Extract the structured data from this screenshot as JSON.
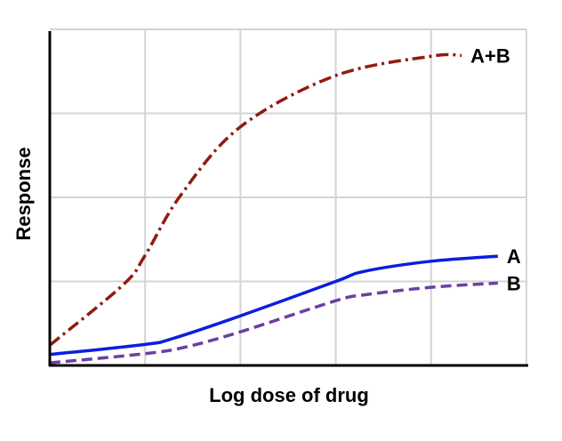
{
  "chart_data": {
    "type": "line",
    "title": "",
    "xlabel": "Log dose of drug",
    "ylabel": "Response",
    "xlim": [
      0,
      5
    ],
    "ylim": [
      0,
      4
    ],
    "grid": true,
    "tick_labels": false,
    "series": [
      {
        "name": "A+B",
        "color": "#8e1c12",
        "style": "dash-dot",
        "x": [
          0,
          0.77,
          1.0,
          1.37,
          2.0,
          3.0,
          4.0,
          4.32
        ],
        "y": [
          0.24,
          0.96,
          1.31,
          2.02,
          2.84,
          3.45,
          3.68,
          3.69
        ]
      },
      {
        "name": "A",
        "color": "#0b1ee0",
        "style": "solid",
        "x": [
          0,
          1.0,
          1.29,
          2.0,
          3.0,
          3.3,
          4.0,
          4.7
        ],
        "y": [
          0.13,
          0.25,
          0.32,
          0.59,
          1.0,
          1.12,
          1.24,
          1.3
        ]
      },
      {
        "name": "B",
        "color": "#6a3fa2",
        "style": "dashed",
        "x": [
          0,
          1.0,
          1.43,
          2.0,
          3.0,
          3.3,
          4.0,
          4.7
        ],
        "y": [
          0.03,
          0.14,
          0.22,
          0.4,
          0.77,
          0.84,
          0.93,
          0.98
        ]
      }
    ]
  }
}
